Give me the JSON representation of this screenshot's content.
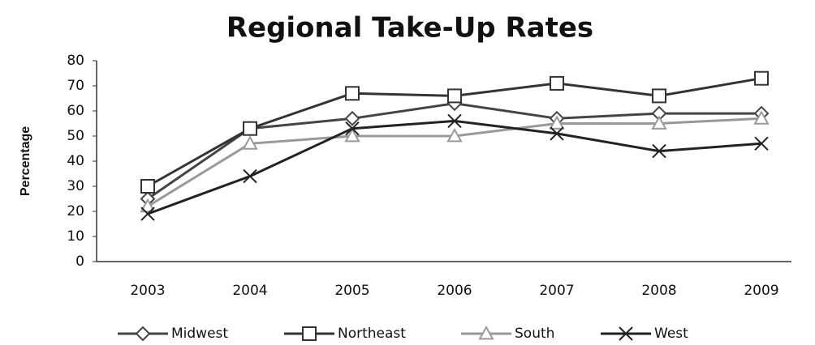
{
  "chart_data": {
    "type": "line",
    "title": "Regional Take-Up Rates",
    "y_label": "Percentage",
    "categories": [
      "2003",
      "2004",
      "2005",
      "2006",
      "2007",
      "2008",
      "2009"
    ],
    "series": [
      {
        "name": "Midwest",
        "color": "#444444",
        "marker": "diamond",
        "values": [
          25,
          53,
          57,
          63,
          57,
          59,
          59
        ]
      },
      {
        "name": "Northeast",
        "color": "#333333",
        "marker": "square",
        "values": [
          30,
          53,
          67,
          66,
          71,
          66,
          73
        ]
      },
      {
        "name": "South",
        "color": "#999999",
        "marker": "triangle",
        "values": [
          22,
          47,
          50,
          50,
          55,
          55,
          57
        ]
      },
      {
        "name": "West",
        "color": "#222222",
        "marker": "x",
        "values": [
          19,
          34,
          53,
          56,
          51,
          44,
          47
        ]
      }
    ],
    "ylim": [
      0,
      80
    ],
    "yticks": [
      0,
      10,
      20,
      30,
      40,
      50,
      60,
      70,
      80
    ],
    "grid": false,
    "legend": "bottom"
  }
}
